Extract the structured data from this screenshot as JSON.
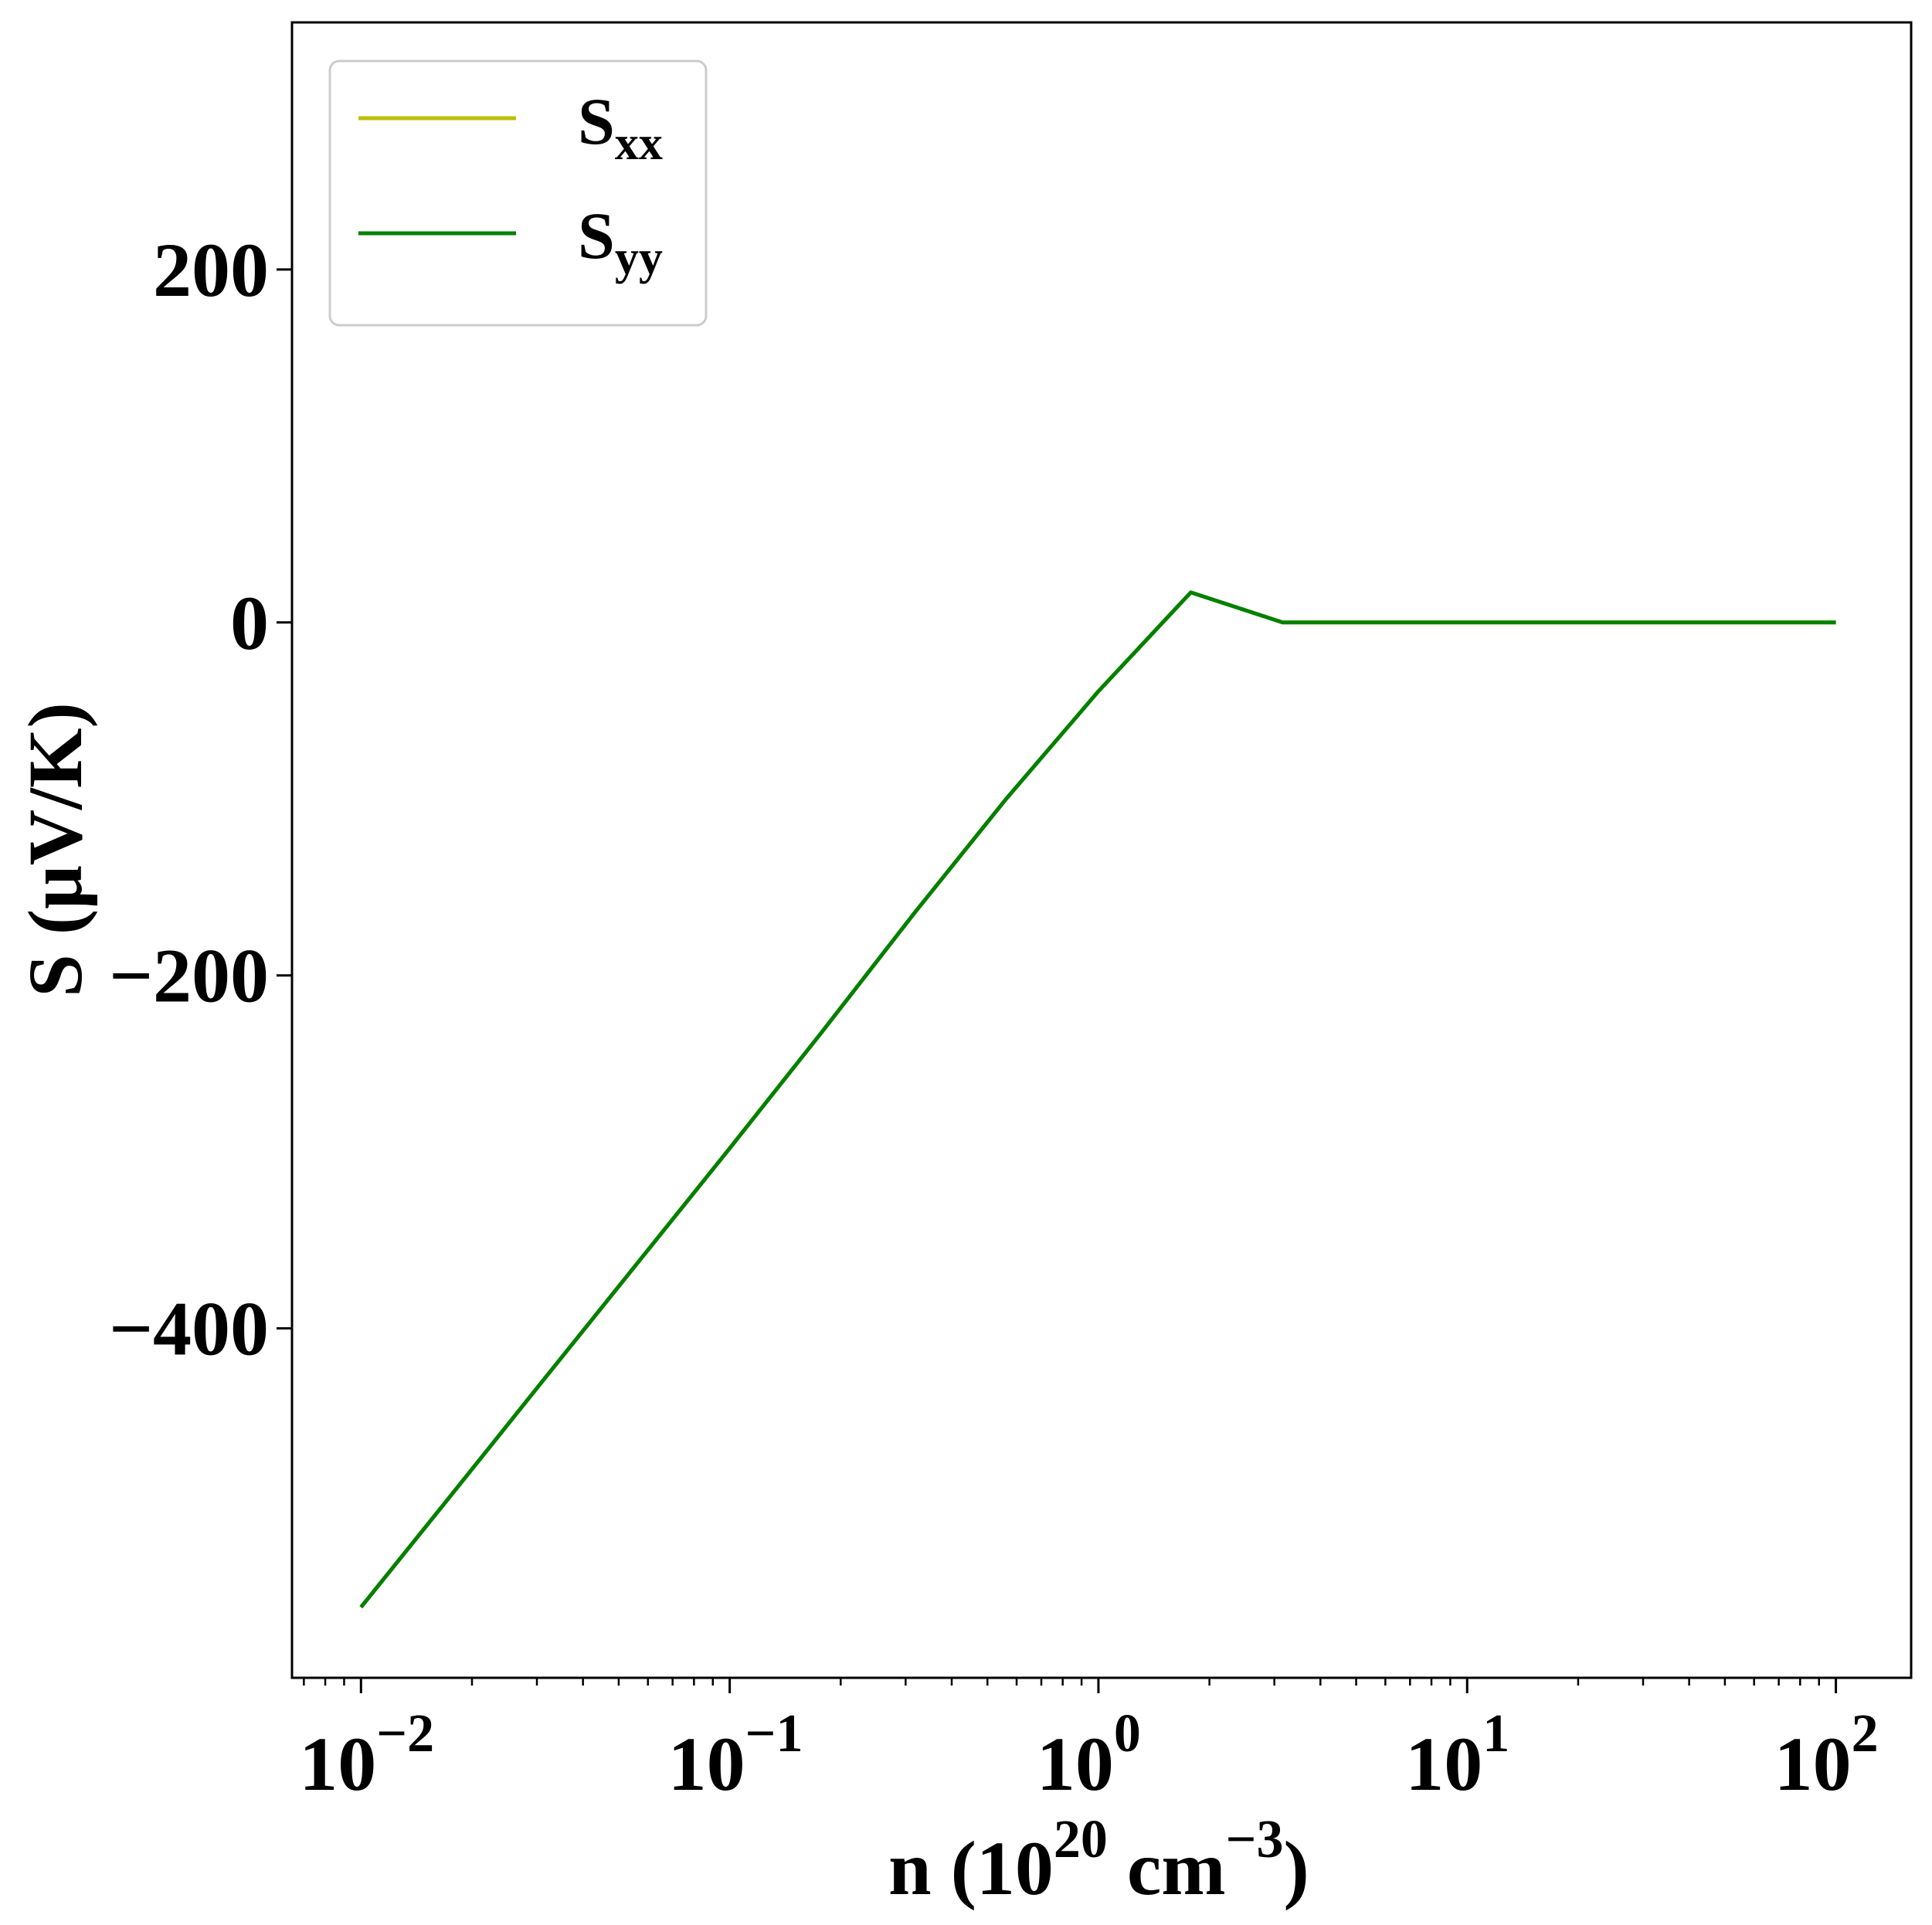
{
  "chart_data": {
    "type": "line",
    "xscale": "log",
    "xlim": [
      0.0065,
      160
    ],
    "ylim": [
      -598,
      340
    ],
    "grid": false,
    "legend_position": "top-left",
    "xlabel": {
      "main": "n (10",
      "sup1": "20",
      "mid": " cm",
      "sup2": "−3",
      "end": ")"
    },
    "ylabel": "S (μV/K)",
    "x_ticks": [
      {
        "base": "10",
        "exp": "−2",
        "value": 0.01
      },
      {
        "base": "10",
        "exp": "−1",
        "value": 0.1
      },
      {
        "base": "10",
        "exp": "0",
        "value": 1
      },
      {
        "base": "10",
        "exp": "1",
        "value": 10
      },
      {
        "base": "10",
        "exp": "2",
        "value": 100
      }
    ],
    "y_ticks": [
      {
        "label": "200",
        "value": 200
      },
      {
        "label": "0",
        "value": 0
      },
      {
        "label": "−200",
        "value": -200
      },
      {
        "label": "−400",
        "value": -400
      }
    ],
    "series": [
      {
        "name": "S",
        "sub": "xx",
        "color": "#bfbf00",
        "x": [
          0.01,
          0.0178,
          0.0316,
          0.0562,
          0.1,
          0.178,
          0.316,
          0.562,
          1.0,
          1.78,
          3.16,
          5.62,
          10.0,
          13.3,
          17.8,
          23.7,
          27.0,
          29.0,
          29.8,
          30.2,
          30.6,
          31.0,
          31.6,
          33.0,
          36.0,
          40.0,
          45.0,
          50.0,
          56.2,
          63.0,
          70.0,
          80.0,
          90.0,
          100.0
        ],
        "y": [
          -558,
          -493,
          -428,
          -363,
          -298,
          -232,
          -165,
          -100,
          -39,
          17,
          0,
          0,
          0,
          0,
          0,
          0,
          0,
          0,
          0,
          0,
          0,
          0,
          0,
          0,
          0,
          0,
          0,
          0,
          0,
          0,
          0,
          0,
          0,
          0
        ]
      },
      {
        "name": "S",
        "sub": "yy",
        "color": "#008000",
        "x": [
          0.01,
          0.0178,
          0.0316,
          0.0562,
          0.1,
          0.178,
          0.316,
          0.562,
          1.0,
          1.78,
          3.16,
          5.62,
          10.0,
          13.3,
          17.8,
          23.7,
          27.0,
          29.0,
          29.8,
          30.2,
          30.6,
          31.0,
          31.6,
          33.0,
          36.0,
          40.0,
          45.0,
          50.0,
          56.2,
          63.0,
          70.0,
          80.0,
          90.0,
          100.0
        ],
        "y": [
          -558,
          -493,
          -428,
          -363,
          -298,
          -232,
          -165,
          -100,
          -39,
          17,
          0,
          0,
          0,
          0,
          0,
          0,
          0,
          0,
          0,
          0,
          0,
          0,
          0,
          0,
          0,
          0,
          0,
          0,
          0,
          0,
          0,
          0,
          0,
          0
        ]
      }
    ]
  }
}
